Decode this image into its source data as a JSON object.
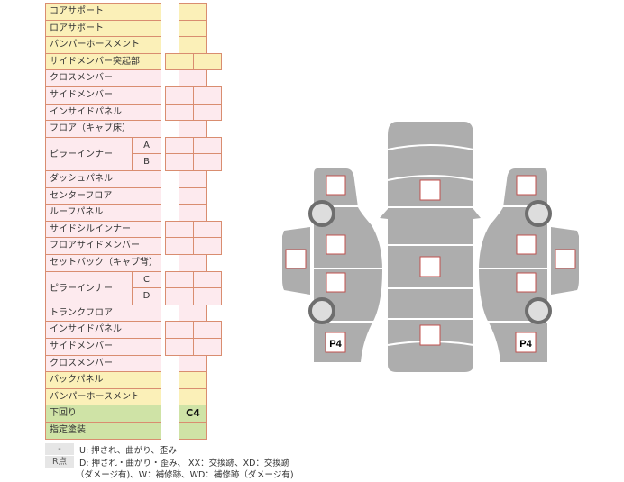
{
  "rows": [
    {
      "label": "コアサポート",
      "color": "y",
      "cells": 1
    },
    {
      "label": "ロアサポート",
      "color": "y",
      "cells": 1
    },
    {
      "label": "バンパーホースメント",
      "color": "y",
      "cells": 1
    },
    {
      "label": "サイドメンバー突起部",
      "color": "y",
      "cells": 2
    },
    {
      "label": "クロスメンバー",
      "color": "p",
      "cells": 1
    },
    {
      "label": "サイドメンバー",
      "color": "p",
      "cells": 2
    },
    {
      "label": "インサイドパネル",
      "color": "p",
      "cells": 2
    },
    {
      "label": "フロア（キャブ床）",
      "color": "p",
      "cells": 1
    },
    {
      "label": "ピラーインナー",
      "color": "p",
      "cells": 2,
      "sub": [
        "A",
        "B"
      ]
    },
    {
      "label": "ダッシュパネル",
      "color": "p",
      "cells": 1
    },
    {
      "label": "センターフロア",
      "color": "p",
      "cells": 1
    },
    {
      "label": "ルーフパネル",
      "color": "p",
      "cells": 1
    },
    {
      "label": "サイドシルインナー",
      "color": "p",
      "cells": 2
    },
    {
      "label": "フロアサイドメンバー",
      "color": "p",
      "cells": 2
    },
    {
      "label": "セットバック（キャブ背）",
      "color": "p",
      "cells": 1
    },
    {
      "label": "ピラーインナー",
      "color": "p",
      "cells": 2,
      "sub": [
        "C",
        "D"
      ]
    },
    {
      "label": "トランクフロア",
      "color": "p",
      "cells": 1
    },
    {
      "label": "インサイドパネル",
      "color": "p",
      "cells": 2
    },
    {
      "label": "サイドメンバー",
      "color": "p",
      "cells": 2
    },
    {
      "label": "クロスメンバー",
      "color": "p",
      "cells": 1
    },
    {
      "label": "バックパネル",
      "color": "y",
      "cells": 1
    },
    {
      "label": "バンパーホースメント",
      "color": "y",
      "cells": 1
    },
    {
      "label": "下回り",
      "color": "g",
      "cells": 1,
      "value": "C4"
    },
    {
      "label": "指定塗装",
      "color": "g",
      "cells": 1
    }
  ],
  "diagram": {
    "left_rear_mark": "P4",
    "right_rear_mark": "P4"
  },
  "legend": [
    {
      "key": "-",
      "text": "U: 押され、曲がり、歪み"
    },
    {
      "key": "R点",
      "text": "D: 押され・曲がり・歪み、 XX：交換跡、XD：交換跡"
    },
    {
      "key": "",
      "text": "（ダメージ有)、W：補修跡、WD：補修跡（ダメージ有)"
    }
  ],
  "colors": {
    "yellow": "#fbf0b8",
    "pink": "#fdeaee",
    "green": "#cfe3a6",
    "border": "#d98d70",
    "car": "#a9a9a9"
  }
}
